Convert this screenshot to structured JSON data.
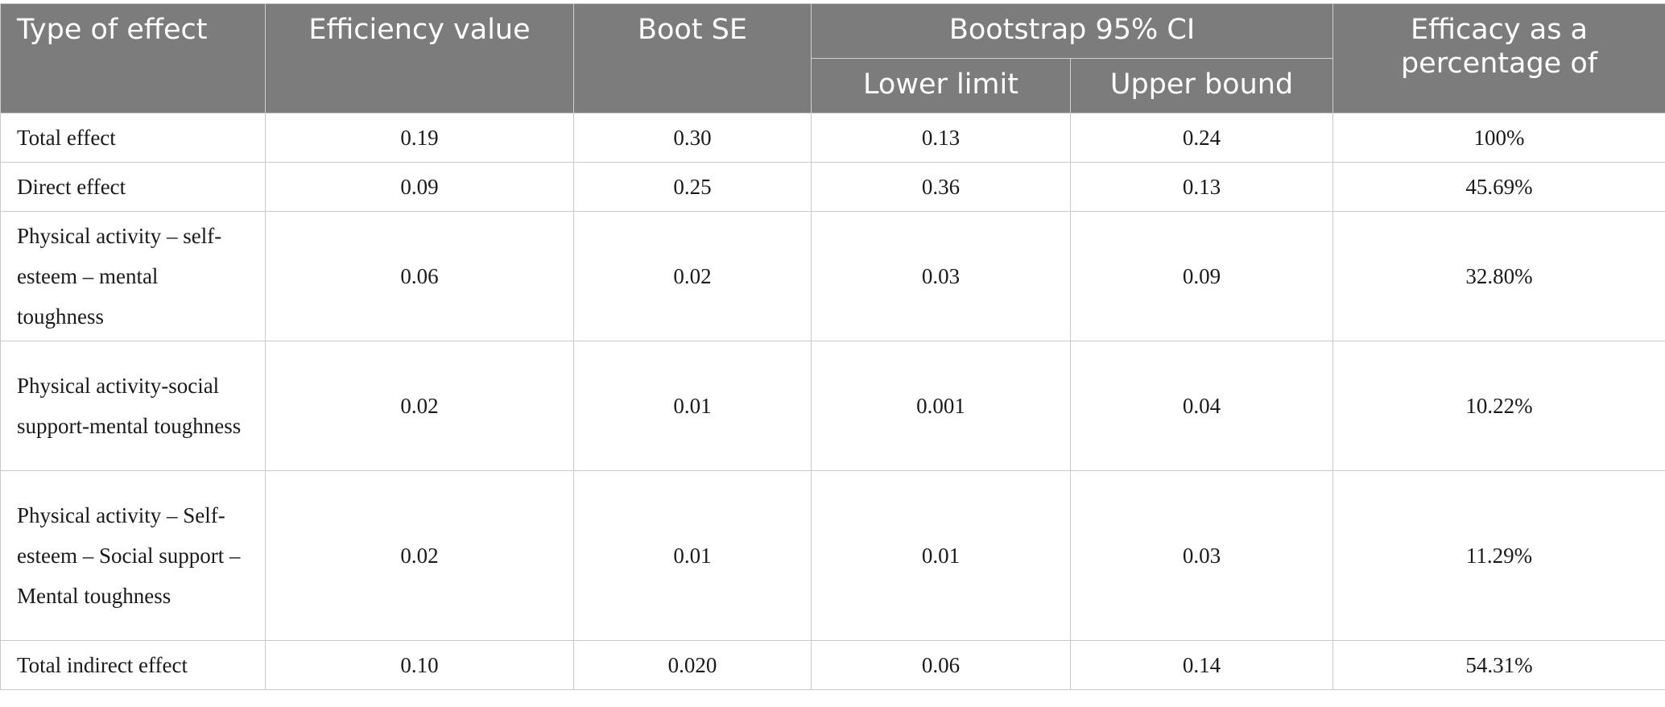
{
  "table": {
    "headers": {
      "type_of_effect": "Type of effect",
      "efficiency_value": "Efficiency value",
      "boot_se": "Boot SE",
      "bootstrap_ci": "Bootstrap 95% CI",
      "lower_limit": "Lower limit",
      "upper_bound": "Upper bound",
      "efficacy_percentage": "Efficacy as a percentage of"
    },
    "rows": [
      {
        "type": "Total effect",
        "efficiency": "0.19",
        "boot_se": "0.30",
        "lower": "0.13",
        "upper": "0.24",
        "percentage": "100%"
      },
      {
        "type": "Direct effect",
        "efficiency": "0.09",
        "boot_se": "0.25",
        "lower": "0.36",
        "upper": "0.13",
        "percentage": "45.69%"
      },
      {
        "type": "Physical activity – self-esteem – mental toughness",
        "efficiency": "0.06",
        "boot_se": "0.02",
        "lower": "0.03",
        "upper": "0.09",
        "percentage": "32.80%"
      },
      {
        "type": "Physical activity-social support-mental toughness",
        "efficiency": "0.02",
        "boot_se": "0.01",
        "lower": "0.001",
        "upper": "0.04",
        "percentage": "10.22%"
      },
      {
        "type": "Physical activity – Self-esteem – Social support – Mental toughness",
        "efficiency": "0.02",
        "boot_se": "0.01",
        "lower": "0.01",
        "upper": "0.03",
        "percentage": "11.29%"
      },
      {
        "type": "Total indirect effect",
        "efficiency": "0.10",
        "boot_se": "0.020",
        "lower": "0.06",
        "upper": "0.14",
        "percentage": "54.31%"
      }
    ]
  }
}
